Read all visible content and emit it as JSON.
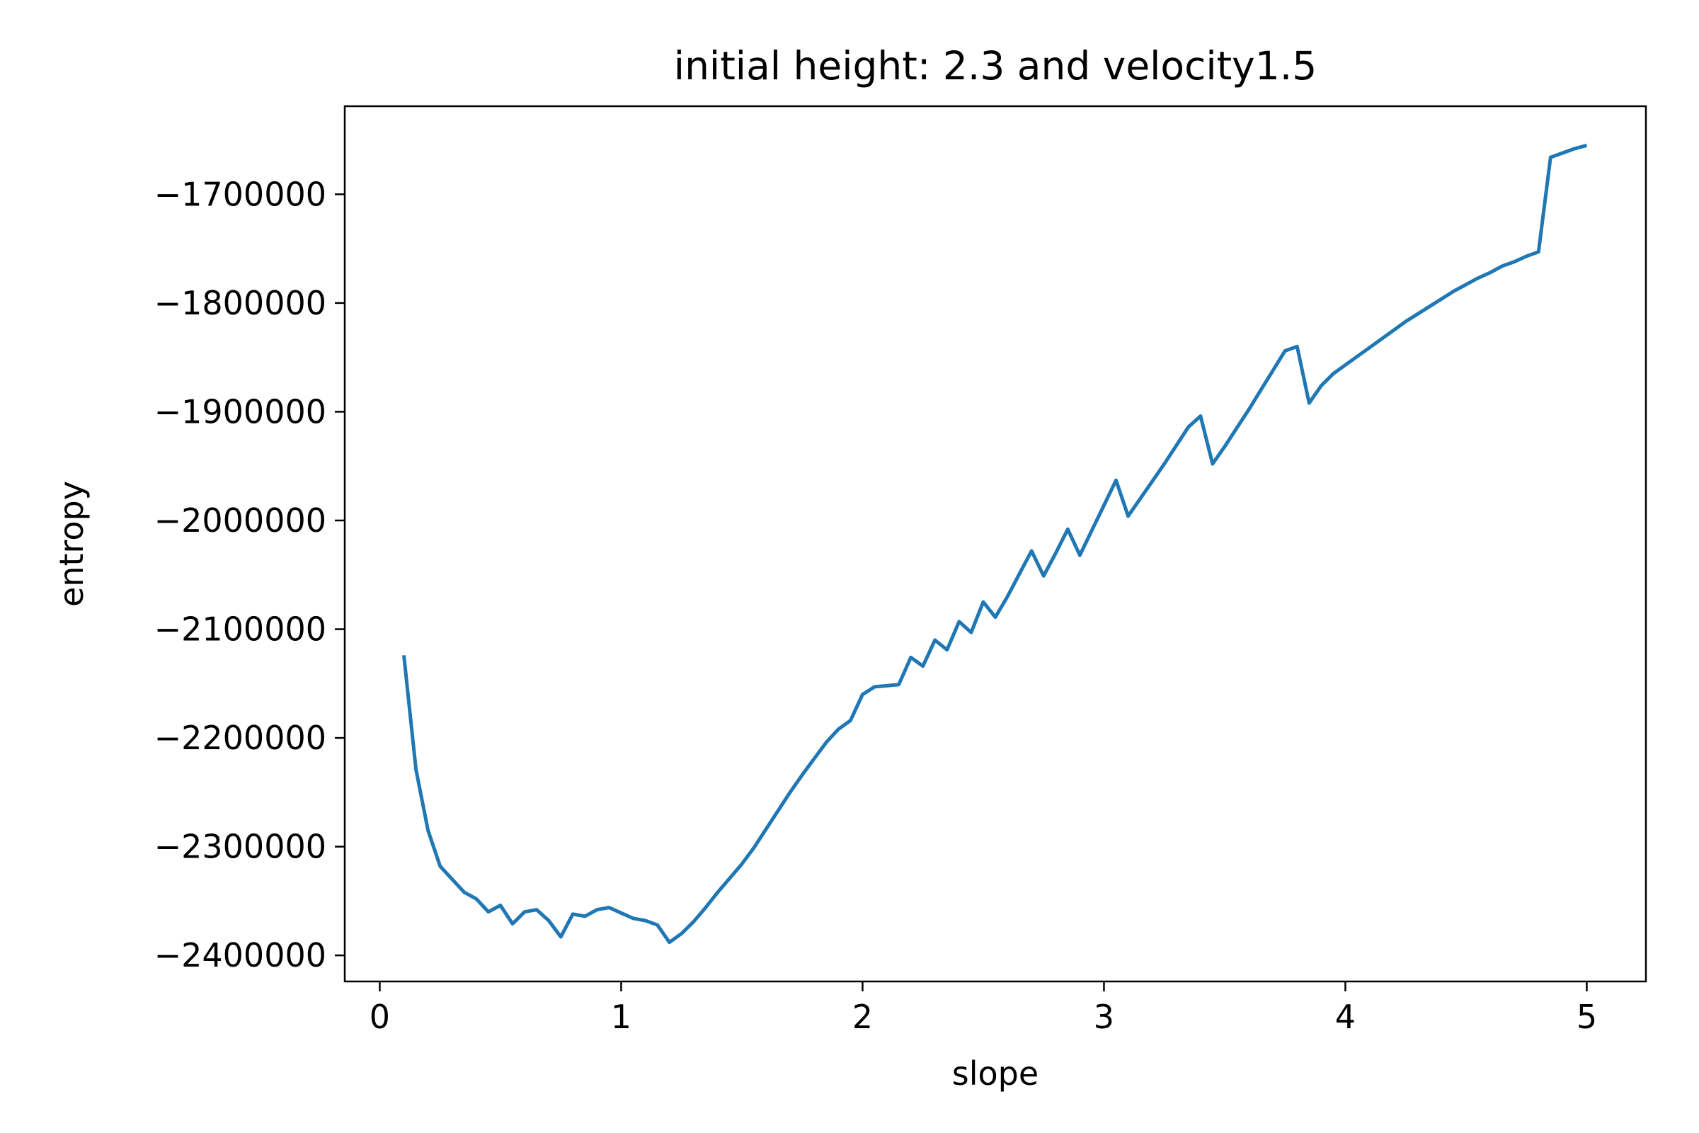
{
  "chart_data": {
    "type": "line",
    "title": "initial height: 2.3 and velocity1.5",
    "xlabel": "slope",
    "ylabel": "entropy",
    "xlim": [
      -0.145,
      5.245
    ],
    "ylim": [
      -2424000,
      -1619000
    ],
    "x_ticks": [
      0,
      1,
      2,
      3,
      4,
      5
    ],
    "x_tick_labels": [
      "0",
      "1",
      "2",
      "3",
      "4",
      "5"
    ],
    "y_ticks": [
      -1700000,
      -1800000,
      -1900000,
      -2000000,
      -2100000,
      -2200000,
      -2300000,
      -2400000
    ],
    "y_tick_labels": [
      "−1700000",
      "−1800000",
      "−1900000",
      "−2000000",
      "−2100000",
      "−2200000",
      "−2300000",
      "−2400000"
    ],
    "grid": false,
    "color": "#1f77b4",
    "series": [
      {
        "x": [
          0.1,
          0.15,
          0.2,
          0.25,
          0.3,
          0.35,
          0.4,
          0.45,
          0.5,
          0.55,
          0.6,
          0.65,
          0.7,
          0.75,
          0.8,
          0.85,
          0.9,
          0.95,
          1.0,
          1.05,
          1.1,
          1.15,
          1.2,
          1.25,
          1.3,
          1.35,
          1.4,
          1.45,
          1.5,
          1.55,
          1.6,
          1.65,
          1.7,
          1.75,
          1.8,
          1.85,
          1.9,
          1.95,
          2.0,
          2.05,
          2.1,
          2.15,
          2.2,
          2.25,
          2.3,
          2.35,
          2.4,
          2.45,
          2.5,
          2.55,
          2.6,
          2.65,
          2.7,
          2.75,
          2.8,
          2.85,
          2.9,
          2.95,
          3.0,
          3.05,
          3.1,
          3.15,
          3.2,
          3.25,
          3.3,
          3.35,
          3.4,
          3.45,
          3.5,
          3.55,
          3.6,
          3.65,
          3.7,
          3.75,
          3.8,
          3.85,
          3.9,
          3.95,
          4.0,
          4.05,
          4.1,
          4.15,
          4.2,
          4.25,
          4.3,
          4.35,
          4.4,
          4.45,
          4.5,
          4.55,
          4.6,
          4.65,
          4.7,
          4.75,
          4.8,
          4.85,
          4.9,
          4.95,
          5.0
        ],
        "values": [
          -2124000,
          -2229000,
          -2285000,
          -2318000,
          -2330000,
          -2342000,
          -2348000,
          -2360000,
          -2354000,
          -2371000,
          -2360000,
          -2358000,
          -2368000,
          -2383000,
          -2362000,
          -2364000,
          -2358000,
          -2356000,
          -2361000,
          -2366000,
          -2368000,
          -2372000,
          -2388000,
          -2380000,
          -2369000,
          -2356000,
          -2342000,
          -2329000,
          -2316000,
          -2301000,
          -2284000,
          -2267000,
          -2250000,
          -2234000,
          -2219000,
          -2204000,
          -2192000,
          -2184000,
          -2160000,
          -2153000,
          -2152000,
          -2151000,
          -2126000,
          -2134000,
          -2110000,
          -2119000,
          -2093000,
          -2103000,
          -2075000,
          -2089000,
          -2070000,
          -2049000,
          -2028000,
          -2051000,
          -2030000,
          -2008000,
          -2032000,
          -2009000,
          -1986000,
          -1963000,
          -1996000,
          -1980000,
          -1964000,
          -1948000,
          -1931000,
          -1914000,
          -1904000,
          -1948000,
          -1932000,
          -1915000,
          -1898000,
          -1880000,
          -1862000,
          -1844000,
          -1840000,
          -1892000,
          -1876000,
          -1865000,
          -1857000,
          -1849000,
          -1841000,
          -1833000,
          -1825000,
          -1817000,
          -1810000,
          -1803000,
          -1796000,
          -1789000,
          -1783000,
          -1777000,
          -1772000,
          -1766000,
          -1762000,
          -1757000,
          -1753000,
          -1666000,
          -1662000,
          -1658000,
          -1655000
        ]
      }
    ]
  }
}
